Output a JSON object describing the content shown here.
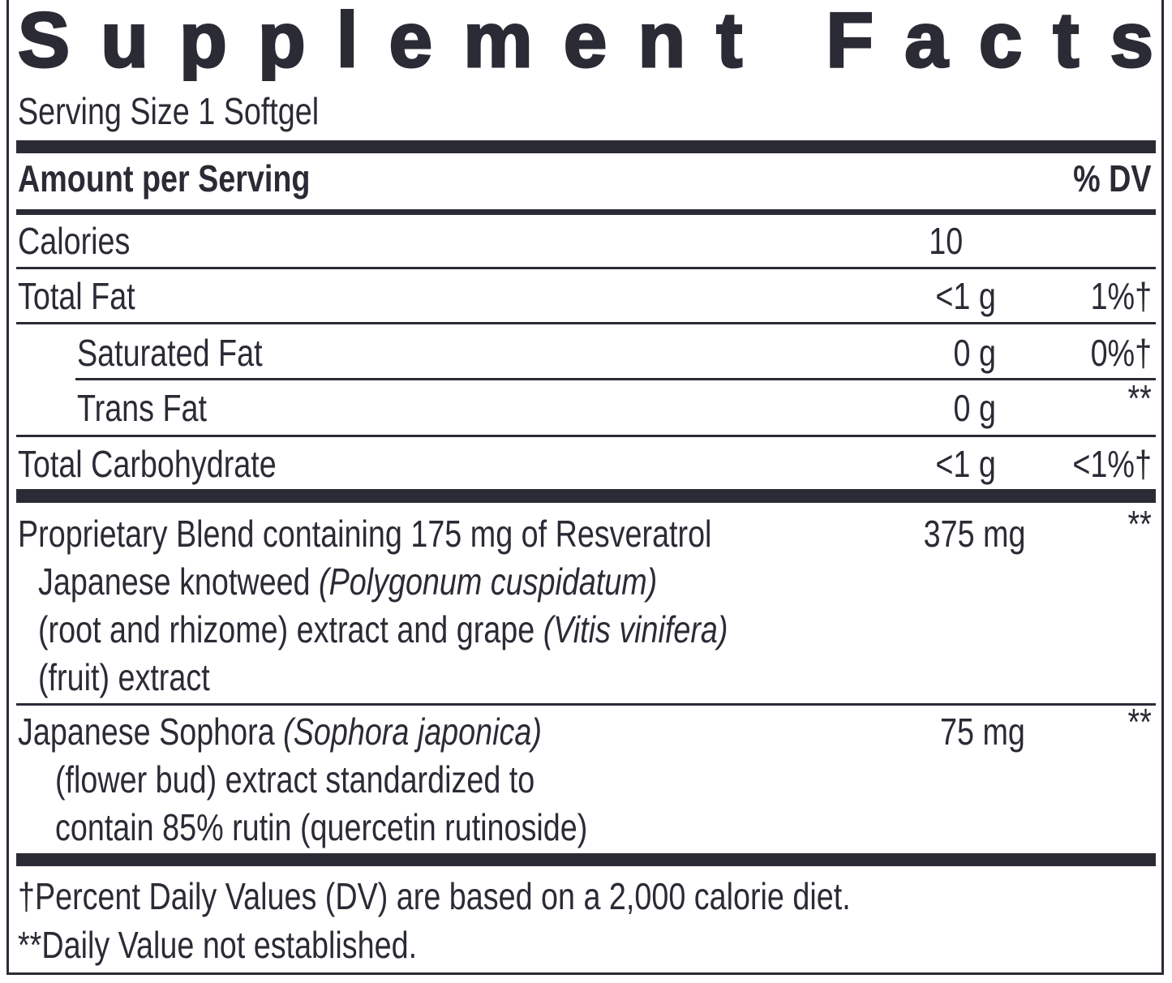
{
  "header": {
    "title": "Supplement Facts",
    "serving_size": "Serving Size 1 Softgel"
  },
  "table": {
    "columns": [
      "Amount per Serving",
      "% DV"
    ],
    "nutrients": [
      {
        "name": "Calories",
        "amount": "10"
      },
      {
        "name": "Total Fat",
        "amount": "<1 g",
        "dv": "1%†"
      },
      {
        "name": "Saturated Fat",
        "amount": "0 g",
        "dv": "0%†"
      },
      {
        "name": "Trans Fat",
        "amount": "0 g",
        "dv": "**"
      },
      {
        "name": "Total Carbohydrate",
        "amount": "<1 g",
        "dv": "<1%†"
      }
    ],
    "ingredients": [
      {
        "lines": [
          [
            {
              "text": "Proprietary Blend containing 175 mg of Resveratrol"
            }
          ],
          [
            {
              "text": "Japanese knotweed "
            },
            {
              "text": "(Polygonum cuspidatum)",
              "italic": true
            }
          ],
          [
            {
              "text": "(root and rhizome) extract and grape "
            },
            {
              "text": "(Vitis vinifera)",
              "italic": true
            }
          ],
          [
            {
              "text": "(fruit) extract"
            }
          ]
        ],
        "amount": "375 mg",
        "dv": "**"
      },
      {
        "lines": [
          [
            {
              "text": "Japanese Sophora "
            },
            {
              "text": "(Sophora japonica)",
              "italic": true
            }
          ],
          [
            {
              "text": "(flower bud) extract standardized to"
            }
          ],
          [
            {
              "text": "contain 85% rutin (quercetin rutinoside)"
            }
          ]
        ],
        "amount": "75 mg",
        "dv": "**"
      }
    ]
  },
  "footnotes": [
    "†Percent Daily Values (DV) are based on a 2,000 calorie diet.",
    "**Daily Value not established."
  ]
}
